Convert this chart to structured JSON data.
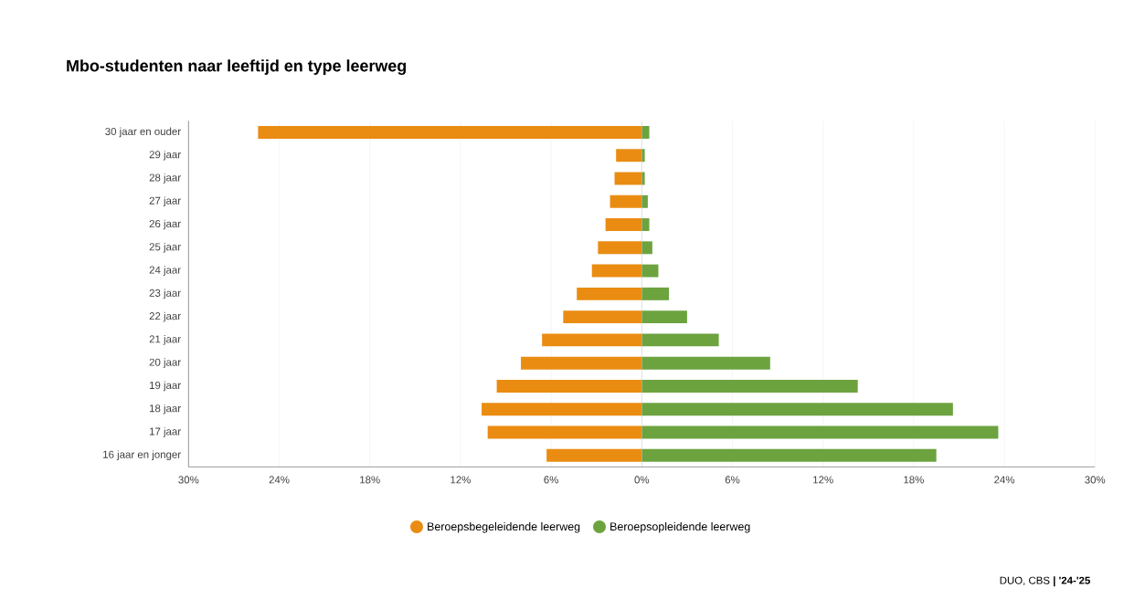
{
  "chart_data": {
    "type": "bar",
    "orientation": "horizontal",
    "title": "Mbo-studenten naar leeftijd en type leerweg",
    "categories": [
      "30 jaar en ouder",
      "29 jaar",
      "28 jaar",
      "27 jaar",
      "26 jaar",
      "25 jaar",
      "24 jaar",
      "23 jaar",
      "22 jaar",
      "21 jaar",
      "20 jaar",
      "19 jaar",
      "18 jaar",
      "17 jaar",
      "16 jaar en jonger"
    ],
    "series": [
      {
        "name": "Beroepsbegeleidende leerweg",
        "color": "#ea8c12",
        "values": [
          -25.4,
          -1.7,
          -1.8,
          -2.1,
          -2.4,
          -2.9,
          -3.3,
          -4.3,
          -5.2,
          -6.6,
          -8.0,
          -9.6,
          -10.6,
          -10.2,
          -6.3
        ]
      },
      {
        "name": "Beroepsopleidende leerweg",
        "color": "#6ca33f",
        "values": [
          0.5,
          0.2,
          0.2,
          0.4,
          0.5,
          0.7,
          1.1,
          1.8,
          3.0,
          5.1,
          8.5,
          14.3,
          20.6,
          23.6,
          19.5
        ]
      }
    ],
    "xlim": [
      -30,
      30
    ],
    "xticks": [
      {
        "value": -30,
        "label": "30%"
      },
      {
        "value": -24,
        "label": "24%"
      },
      {
        "value": -18,
        "label": "18%"
      },
      {
        "value": -12,
        "label": "12%"
      },
      {
        "value": -6,
        "label": "6%"
      },
      {
        "value": 0,
        "label": "0%"
      },
      {
        "value": 6,
        "label": "6%"
      },
      {
        "value": 12,
        "label": "12%"
      },
      {
        "value": 18,
        "label": "18%"
      },
      {
        "value": 24,
        "label": "24%"
      },
      {
        "value": 30,
        "label": "30%"
      }
    ],
    "grid": "x",
    "legend": "bottom",
    "stacked": true,
    "annotations": [
      "DUO, CBS **| '24-'25**"
    ]
  }
}
